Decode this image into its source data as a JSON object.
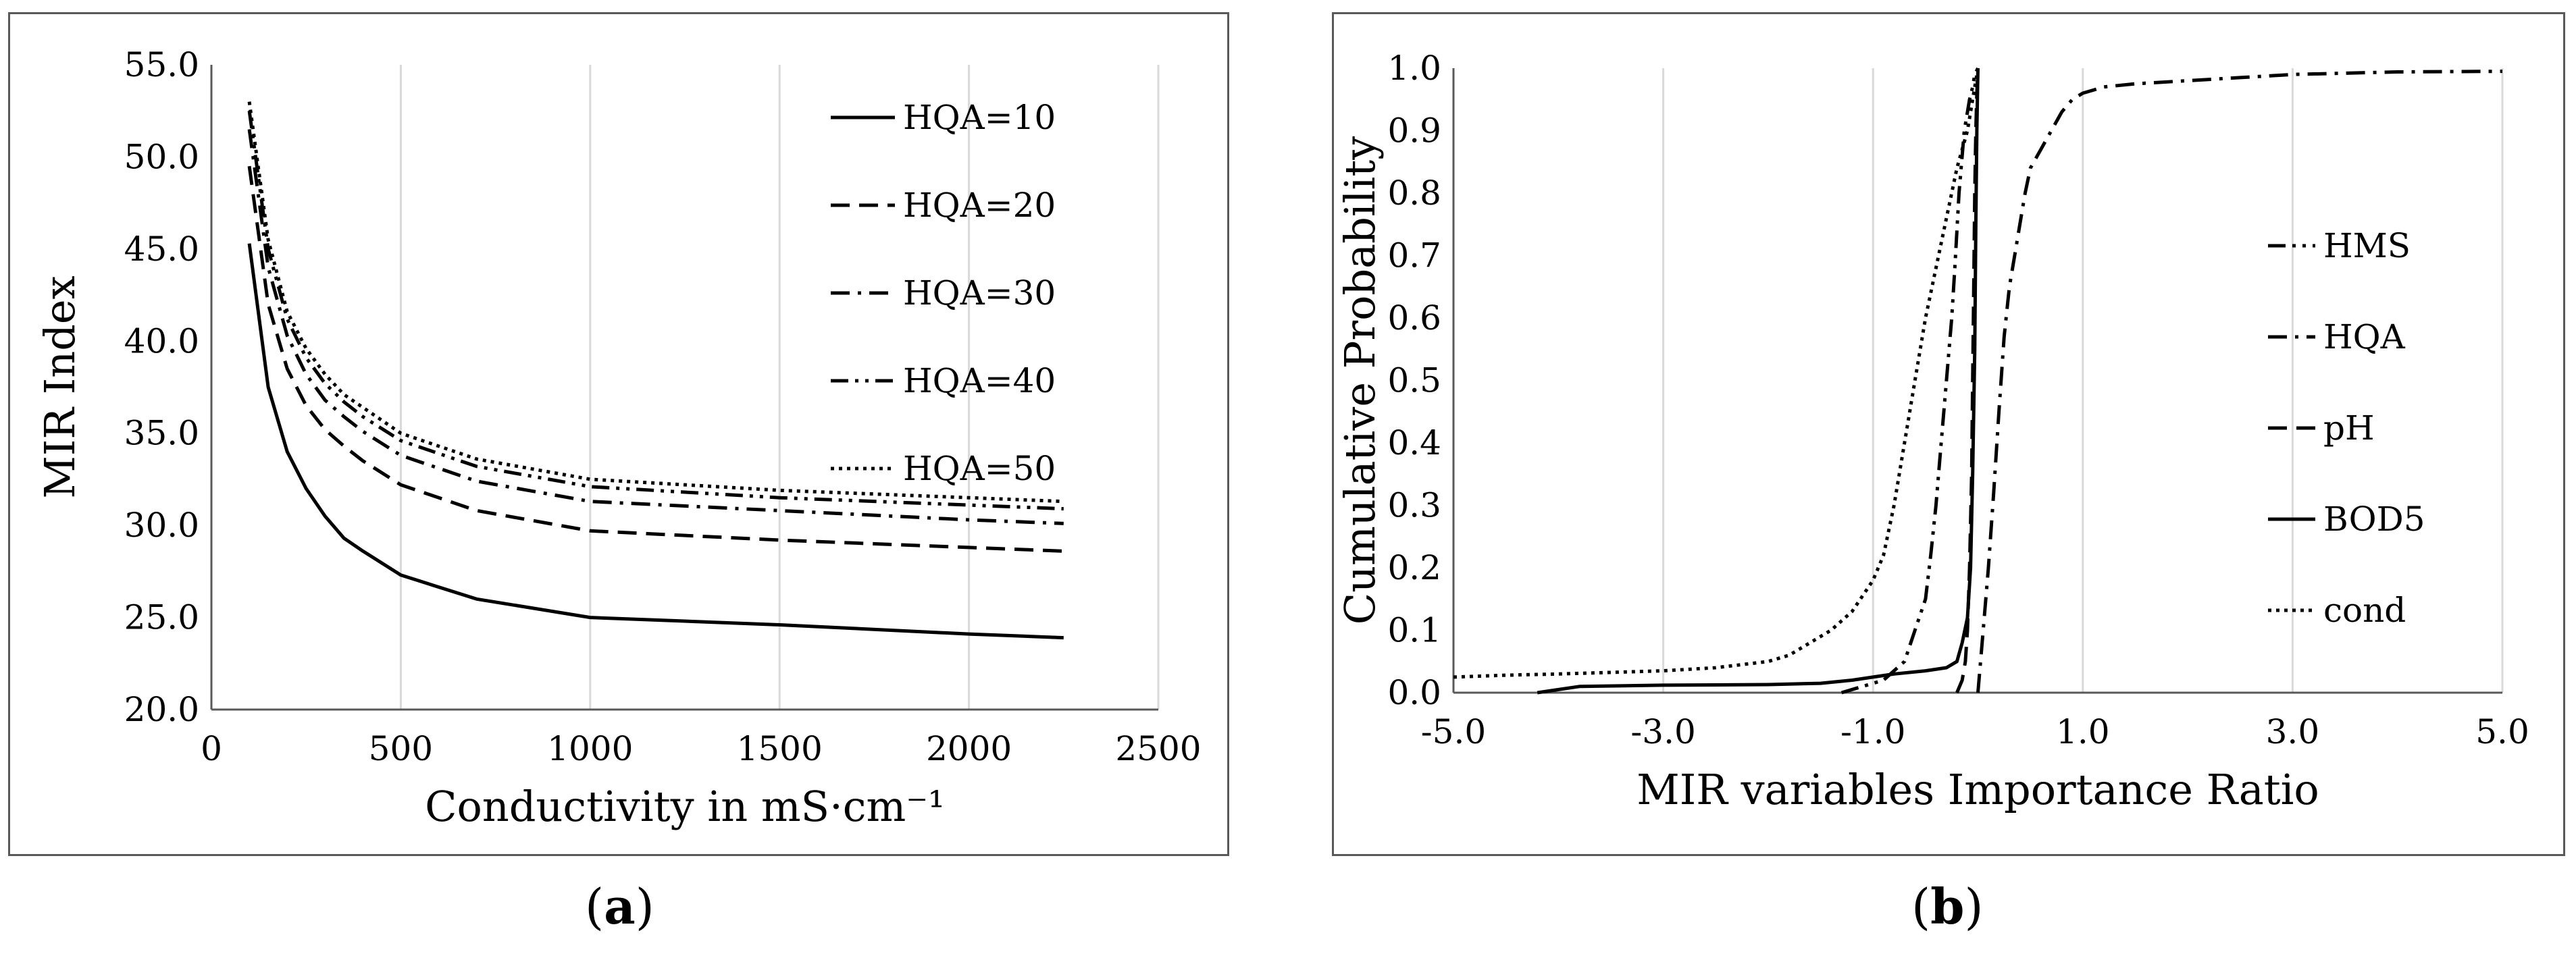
{
  "captions": {
    "a": "a",
    "b": "b"
  },
  "chart_data": [
    {
      "type": "line",
      "panel": "a",
      "xlabel": "Conductivity in mS·cm⁻¹",
      "ylabel": "MIR Index",
      "xlim": [
        0,
        2500
      ],
      "ylim": [
        20,
        55
      ],
      "x_ticks": [
        0,
        500,
        1000,
        1500,
        2000,
        2500
      ],
      "x_tick_labels": [
        "0",
        "500",
        "1000",
        "1500",
        "2000",
        "2500"
      ],
      "y_ticks": [
        20,
        25,
        30,
        35,
        40,
        45,
        50,
        55
      ],
      "y_tick_labels": [
        "20.0",
        "25.0",
        "30.0",
        "35.0",
        "40.0",
        "45.0",
        "50.0",
        "55.0"
      ],
      "grid": "vertical",
      "legend": "top-right",
      "x": [
        100,
        150,
        200,
        250,
        300,
        350,
        400,
        500,
        700,
        1000,
        1500,
        2000,
        2250
      ],
      "series": [
        {
          "name": "HQA=10",
          "dash": "solid",
          "values": [
            45.3,
            37.5,
            34.0,
            32.0,
            30.5,
            29.3,
            28.6,
            27.3,
            26.0,
            25.0,
            24.6,
            24.1,
            23.9
          ]
        },
        {
          "name": "HQA=20",
          "dash": "dash",
          "values": [
            49.5,
            42.0,
            38.5,
            36.5,
            35.2,
            34.3,
            33.5,
            32.2,
            30.8,
            29.7,
            29.2,
            28.8,
            28.6
          ]
        },
        {
          "name": "HQA=30",
          "dash": "dashdot",
          "values": [
            51.5,
            44.0,
            40.3,
            38.2,
            36.8,
            35.9,
            35.1,
            33.8,
            32.4,
            31.3,
            30.8,
            30.3,
            30.1
          ]
        },
        {
          "name": "HQA=40",
          "dash": "dashdotdot",
          "values": [
            52.5,
            45.0,
            41.2,
            39.1,
            37.7,
            36.7,
            35.9,
            34.6,
            33.2,
            32.1,
            31.5,
            31.1,
            30.9
          ]
        },
        {
          "name": "HQA=50",
          "dash": "dot",
          "values": [
            53.0,
            45.5,
            41.6,
            39.6,
            38.2,
            37.1,
            36.4,
            35.0,
            33.6,
            32.5,
            31.9,
            31.5,
            31.3
          ]
        }
      ]
    },
    {
      "type": "line",
      "panel": "b",
      "xlabel": "MIR variables Importance Ratio",
      "ylabel": "Cumulative Probability",
      "xlim": [
        -5,
        5
      ],
      "ylim": [
        0,
        1
      ],
      "x_ticks": [
        -5,
        -3,
        -1,
        1,
        3,
        5
      ],
      "x_tick_labels": [
        "-5.0",
        "-3.0",
        "-1.0",
        "1.0",
        "3.0",
        "5.0"
      ],
      "y_ticks": [
        0,
        0.1,
        0.2,
        0.3,
        0.4,
        0.5,
        0.6,
        0.7,
        0.8,
        0.9,
        1.0
      ],
      "y_tick_labels": [
        "0.0",
        "0.1",
        "0.2",
        "0.3",
        "0.4",
        "0.5",
        "0.6",
        "0.7",
        "0.8",
        "0.9",
        "1.0"
      ],
      "grid": "vertical",
      "legend": "right",
      "series": [
        {
          "name": "HMS",
          "dash": "dashdotdot",
          "x": [
            -1.3,
            -0.9,
            -0.7,
            -0.6,
            -0.5,
            -0.45,
            -0.4,
            -0.35,
            -0.3,
            -0.25,
            -0.22,
            -0.2,
            -0.18,
            -0.15,
            -0.13,
            -0.1,
            -0.08,
            -0.05,
            -0.03,
            0.0
          ],
          "y": [
            0.0,
            0.02,
            0.05,
            0.1,
            0.15,
            0.22,
            0.3,
            0.4,
            0.5,
            0.6,
            0.68,
            0.74,
            0.8,
            0.86,
            0.9,
            0.93,
            0.95,
            0.97,
            0.99,
            1.0
          ]
        },
        {
          "name": "HQA",
          "dash": "dashdot",
          "x": [
            0.0,
            0.05,
            0.1,
            0.15,
            0.2,
            0.25,
            0.3,
            0.35,
            0.4,
            0.45,
            0.5,
            0.6,
            0.7,
            0.8,
            0.9,
            1.0,
            1.2,
            1.5,
            2.0,
            2.5,
            3.0,
            3.5,
            4.0,
            5.0
          ],
          "y": [
            0.0,
            0.1,
            0.2,
            0.32,
            0.45,
            0.57,
            0.65,
            0.7,
            0.75,
            0.8,
            0.84,
            0.87,
            0.9,
            0.93,
            0.95,
            0.96,
            0.97,
            0.975,
            0.98,
            0.985,
            0.99,
            0.992,
            0.994,
            0.995
          ]
        },
        {
          "name": "pH",
          "dash": "dash",
          "x": [
            -0.2,
            -0.15,
            -0.12,
            -0.1,
            -0.08,
            -0.06,
            -0.05,
            -0.04,
            -0.03,
            -0.02,
            -0.01,
            0.0
          ],
          "y": [
            0.0,
            0.02,
            0.05,
            0.1,
            0.2,
            0.35,
            0.5,
            0.65,
            0.8,
            0.9,
            0.96,
            1.0
          ]
        },
        {
          "name": "BOD5",
          "dash": "solid",
          "x": [
            -4.2,
            -3.8,
            -3.0,
            -2.0,
            -1.5,
            -1.2,
            -1.0,
            -0.8,
            -0.5,
            -0.3,
            -0.2,
            -0.15,
            -0.1,
            -0.07,
            -0.05,
            -0.03,
            -0.02,
            -0.01,
            0.0
          ],
          "y": [
            0.0,
            0.01,
            0.012,
            0.013,
            0.015,
            0.02,
            0.025,
            0.03,
            0.035,
            0.04,
            0.05,
            0.08,
            0.12,
            0.2,
            0.35,
            0.55,
            0.75,
            0.9,
            1.0
          ]
        },
        {
          "name": "cond",
          "dash": "dot",
          "x": [
            -5.0,
            -4.5,
            -4.0,
            -3.0,
            -2.5,
            -2.0,
            -1.8,
            -1.6,
            -1.4,
            -1.2,
            -1.0,
            -0.9,
            -0.8,
            -0.7,
            -0.6,
            -0.5,
            -0.4,
            -0.3,
            -0.2,
            -0.1,
            -0.05,
            0.0
          ],
          "y": [
            0.025,
            0.028,
            0.03,
            0.035,
            0.04,
            0.05,
            0.06,
            0.08,
            0.1,
            0.13,
            0.18,
            0.22,
            0.3,
            0.4,
            0.5,
            0.6,
            0.68,
            0.76,
            0.84,
            0.9,
            0.95,
            1.0
          ]
        }
      ]
    }
  ]
}
